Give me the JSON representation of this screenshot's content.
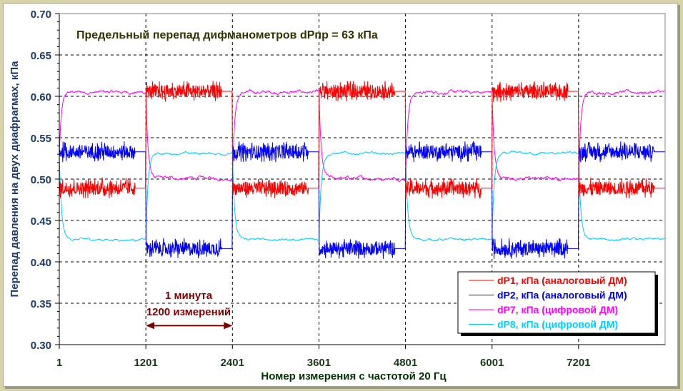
{
  "chart_data": {
    "type": "line",
    "title": "Предельный перепад дифманометров dPпр = 63 кПа",
    "xlabel": "Номер измерения с частотой 20 Гц",
    "ylabel": "Перепад давления на двух диафрагмах, кПа",
    "xlim": [
      1,
      8401
    ],
    "ylim": [
      0.3,
      0.7
    ],
    "x_ticks": [
      "1",
      "1201",
      "2401",
      "3601",
      "4801",
      "6001",
      "7201"
    ],
    "y_ticks": [
      "0.30",
      "0.35",
      "0.40",
      "0.45",
      "0.50",
      "0.55",
      "0.60",
      "0.65",
      "0.70"
    ],
    "grid": true,
    "legend_position": "bottom-right",
    "segment_length": 1200,
    "series": [
      {
        "name": "dP1, кПа (аналоговый ДМ)",
        "color": "#FF0000",
        "noise": 0.008,
        "segment_levels": [
          0.489,
          0.606,
          0.489,
          0.606,
          0.489,
          0.606,
          0.489
        ]
      },
      {
        "name": "dP2, кПа (аналоговый ДМ)",
        "color": "#0000FF",
        "noise": 0.008,
        "segment_levels": [
          0.533,
          0.416,
          0.533,
          0.416,
          0.533,
          0.416,
          0.533
        ]
      },
      {
        "name": "dP7, кПа (цифровой ДМ)",
        "color": "#FF00FF",
        "noise": 0.002,
        "segment_levels": [
          0.605,
          0.501,
          0.605,
          0.501,
          0.605,
          0.501,
          0.605
        ]
      },
      {
        "name": "dP8, кПа (цифровой ДМ)",
        "color": "#00CCFF",
        "noise": 0.0015,
        "segment_levels": [
          0.427,
          0.531,
          0.427,
          0.531,
          0.427,
          0.531,
          0.427
        ]
      }
    ],
    "annotation": {
      "line1": "1 минута",
      "line2": "1200 измерений",
      "from": 1201,
      "to": 2401,
      "y": 0.323,
      "color": "#800000"
    }
  }
}
